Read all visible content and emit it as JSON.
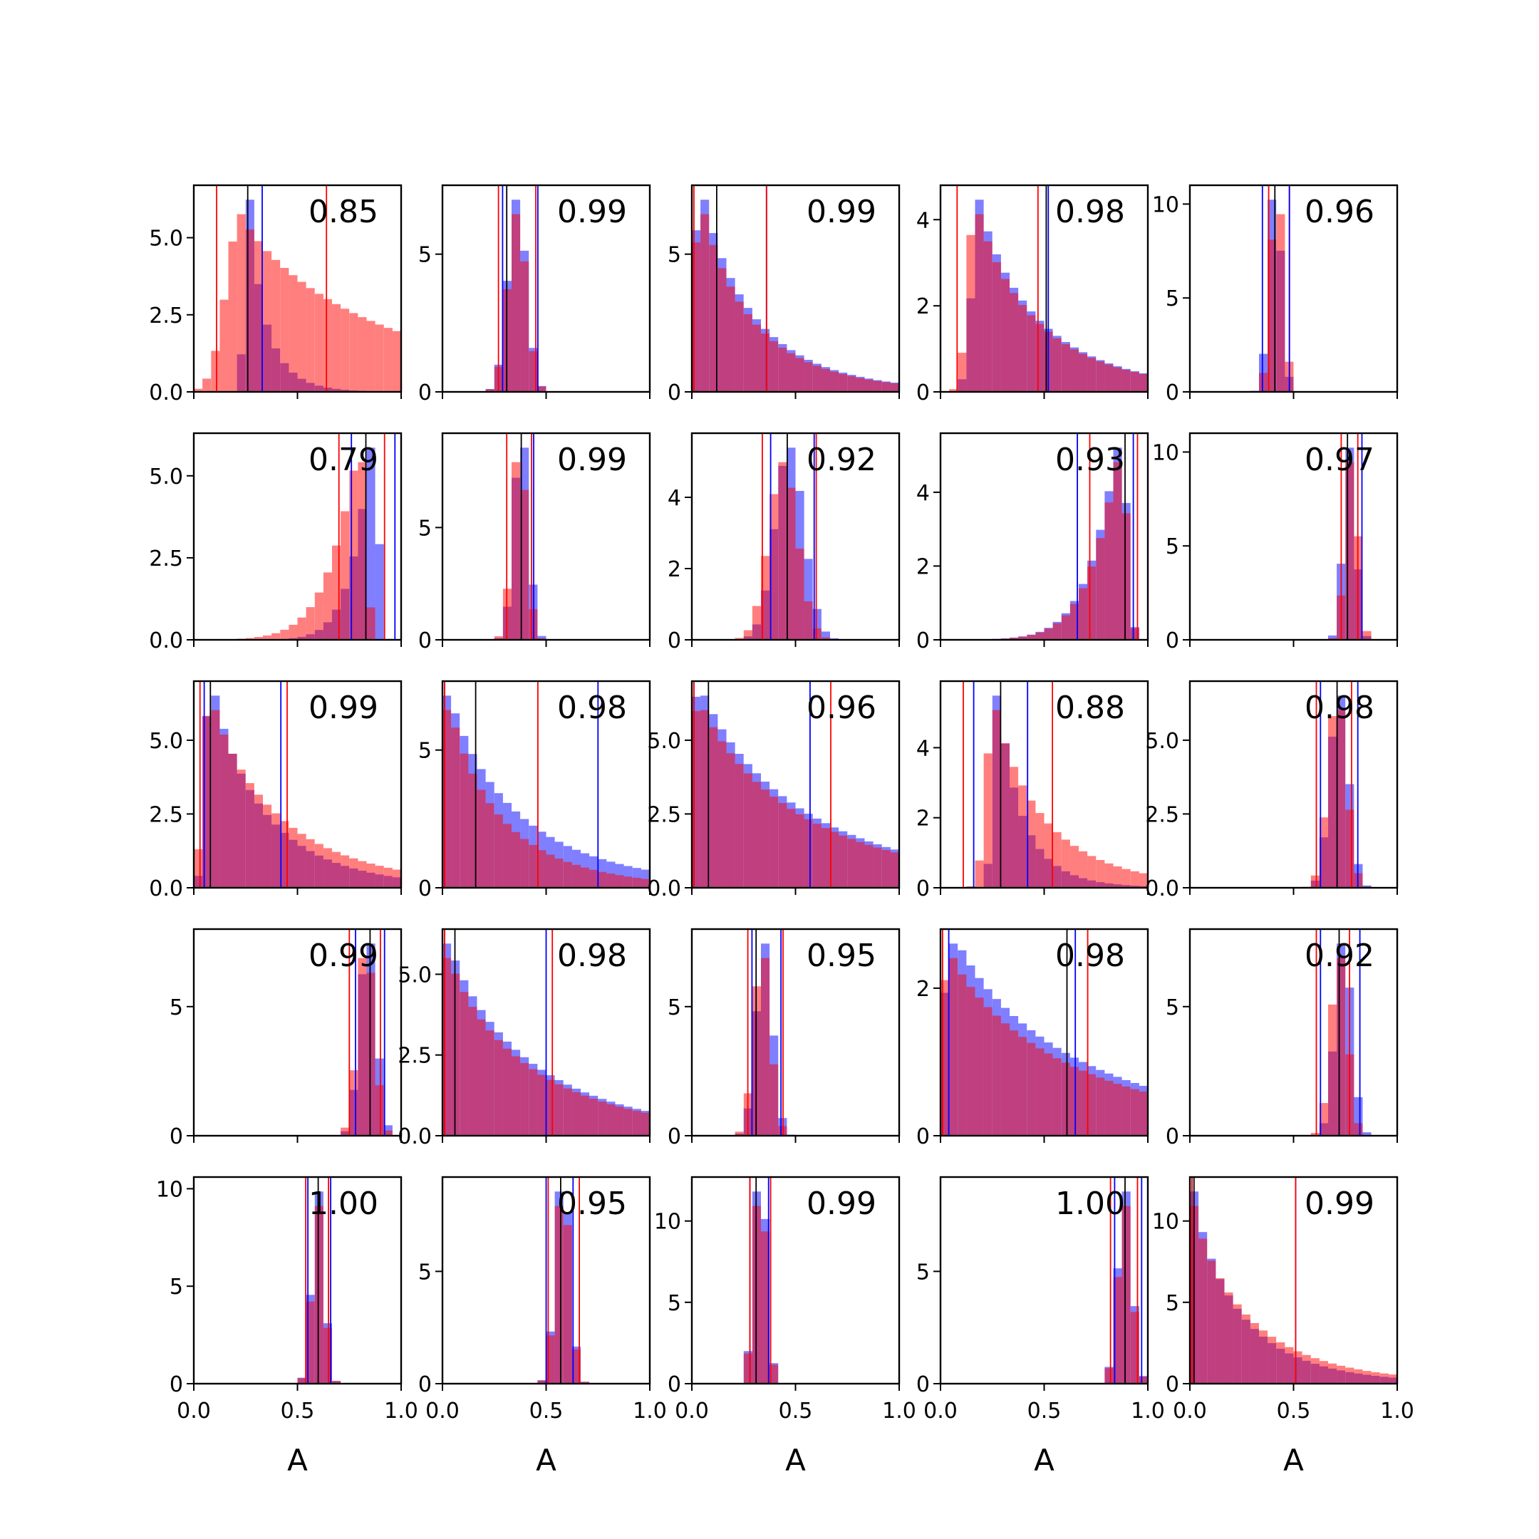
{
  "colors": {
    "series_a": "#0000ff",
    "series_b": "#ff0000",
    "median_line": "#000000"
  },
  "chart_data": {
    "type": "histogram-grid",
    "rows": 5,
    "cols": 5,
    "xlim": [
      0,
      1
    ],
    "xticks": [
      "0.0",
      "0.5",
      "1.0"
    ],
    "xlabel": "A",
    "series": [
      {},
      {}
    ],
    "panels": [
      {
        "value": "0.85",
        "ymax": 6.7,
        "yticks": [
          [
            "0.0",
            0
          ],
          [
            "2.5",
            2.5
          ],
          [
            "5.0",
            5
          ]
        ],
        "centers": [
          0.27,
          0.23
        ],
        "widths": [
          0.055,
          0.18
        ],
        "skews": [
          0.3,
          1.5
        ],
        "lines": [
          {
            "s": "b",
            "x": 0.11
          },
          {
            "s": "b",
            "x": 0.64
          },
          {
            "s": "a",
            "x": 0.33
          },
          {
            "s": "m",
            "x": 0.26
          }
        ]
      },
      {
        "value": "0.99",
        "ymax": 7.5,
        "yticks": [
          [
            "0",
            0
          ],
          [
            "5",
            5
          ]
        ],
        "centers": [
          0.36,
          0.36
        ],
        "widths": [
          0.045,
          0.045
        ],
        "skews": [
          0,
          0
        ],
        "lines": [
          {
            "s": "b",
            "x": 0.27
          },
          {
            "s": "b",
            "x": 0.45
          },
          {
            "s": "a",
            "x": 0.29
          },
          {
            "s": "a",
            "x": 0.46
          },
          {
            "s": "m",
            "x": 0.31
          }
        ]
      },
      {
        "value": "0.99",
        "ymax": 7.5,
        "yticks": [
          [
            "0",
            0
          ],
          [
            "5",
            5
          ]
        ],
        "centers": [
          0.04,
          0.04
        ],
        "widths": [
          0.06,
          0.06
        ],
        "skews": [
          1.6,
          1.6
        ],
        "lines": [
          {
            "s": "b",
            "x": 0.01
          },
          {
            "s": "a",
            "x": 0.36
          },
          {
            "s": "b",
            "x": 0.36
          },
          {
            "s": "m",
            "x": 0.12
          }
        ]
      },
      {
        "value": "0.98",
        "ymax": 4.8,
        "yticks": [
          [
            "0",
            0
          ],
          [
            "2",
            2
          ],
          [
            "4",
            4
          ]
        ],
        "centers": [
          0.19,
          0.17
        ],
        "widths": [
          0.09,
          0.09
        ],
        "skews": [
          1.2,
          1.2
        ],
        "lines": [
          {
            "s": "b",
            "x": 0.08
          },
          {
            "s": "b",
            "x": 0.47
          },
          {
            "s": "a",
            "x": 0.52
          },
          {
            "s": "m",
            "x": 0.51
          }
        ]
      },
      {
        "value": "0.96",
        "ymax": 11,
        "yticks": [
          [
            "0",
            0
          ],
          [
            "5",
            5
          ],
          [
            "10",
            10
          ]
        ],
        "centers": [
          0.41,
          0.42
        ],
        "widths": [
          0.03,
          0.03
        ],
        "skews": [
          0,
          0
        ],
        "lines": [
          {
            "s": "a",
            "x": 0.35
          },
          {
            "s": "b",
            "x": 0.38
          },
          {
            "s": "m",
            "x": 0.41
          },
          {
            "s": "b",
            "x": 0.48
          },
          {
            "s": "a",
            "x": 0.48
          }
        ]
      },
      {
        "value": "0.79",
        "ymax": 6.3,
        "yticks": [
          [
            "0.0",
            0
          ],
          [
            "2.5",
            2.5
          ],
          [
            "5.0",
            5
          ]
        ],
        "centers": [
          0.87,
          0.8
        ],
        "widths": [
          0.05,
          0.07
        ],
        "skews": [
          -0.8,
          -0.8
        ],
        "lines": [
          {
            "s": "b",
            "x": 0.7
          },
          {
            "s": "a",
            "x": 0.76
          },
          {
            "s": "m",
            "x": 0.83
          },
          {
            "s": "b",
            "x": 0.92
          },
          {
            "s": "a",
            "x": 0.97
          }
        ]
      },
      {
        "value": "0.99",
        "ymax": 9.2,
        "yticks": [
          [
            "0",
            0
          ],
          [
            "5",
            5
          ]
        ],
        "centers": [
          0.38,
          0.37
        ],
        "widths": [
          0.035,
          0.035
        ],
        "skews": [
          0,
          0
        ],
        "lines": [
          {
            "s": "b",
            "x": 0.31
          },
          {
            "s": "m",
            "x": 0.38
          },
          {
            "s": "b",
            "x": 0.43
          },
          {
            "s": "a",
            "x": 0.44
          }
        ]
      },
      {
        "value": "0.92",
        "ymax": 5.8,
        "yticks": [
          [
            "0",
            0
          ],
          [
            "2",
            2
          ],
          [
            "4",
            4
          ]
        ],
        "centers": [
          0.47,
          0.44
        ],
        "widths": [
          0.07,
          0.07
        ],
        "skews": [
          0,
          0
        ],
        "lines": [
          {
            "s": "b",
            "x": 0.34
          },
          {
            "s": "a",
            "x": 0.38
          },
          {
            "s": "m",
            "x": 0.46
          },
          {
            "s": "a",
            "x": 0.59
          },
          {
            "s": "b",
            "x": 0.6
          }
        ]
      },
      {
        "value": "0.93",
        "ymax": 5.6,
        "yticks": [
          [
            "0",
            0
          ],
          [
            "2",
            2
          ],
          [
            "4",
            4
          ]
        ],
        "centers": [
          0.87,
          0.87
        ],
        "widths": [
          0.07,
          0.07
        ],
        "skews": [
          -0.8,
          -0.8
        ],
        "lines": [
          {
            "s": "a",
            "x": 0.66
          },
          {
            "s": "b",
            "x": 0.72
          },
          {
            "s": "m",
            "x": 0.89
          },
          {
            "s": "a",
            "x": 0.93
          },
          {
            "s": "b",
            "x": 0.95
          }
        ]
      },
      {
        "value": "0.97",
        "ymax": 11,
        "yticks": [
          [
            "0",
            0
          ],
          [
            "5",
            5
          ],
          [
            "10",
            10
          ]
        ],
        "centers": [
          0.77,
          0.78
        ],
        "widths": [
          0.03,
          0.03
        ],
        "skews": [
          0,
          0
        ],
        "lines": [
          {
            "s": "b",
            "x": 0.73
          },
          {
            "s": "m",
            "x": 0.76
          },
          {
            "s": "b",
            "x": 0.81
          },
          {
            "s": "a",
            "x": 0.83
          }
        ]
      },
      {
        "value": "0.99",
        "ymax": 7,
        "yticks": [
          [
            "0.0",
            0
          ],
          [
            "2.5",
            2.5
          ],
          [
            "5.0",
            5
          ]
        ],
        "centers": [
          0.08,
          0.08
        ],
        "widths": [
          0.06,
          0.08
        ],
        "skews": [
          1.6,
          1.6
        ],
        "lines": [
          {
            "s": "b",
            "x": 0.03
          },
          {
            "s": "a",
            "x": 0.05
          },
          {
            "s": "m",
            "x": 0.08
          },
          {
            "s": "a",
            "x": 0.42
          },
          {
            "s": "b",
            "x": 0.45
          }
        ]
      },
      {
        "value": "0.98",
        "ymax": 7.5,
        "yticks": [
          [
            "0",
            0
          ],
          [
            "5",
            5
          ]
        ],
        "centers": [
          0.03,
          0.03
        ],
        "widths": [
          0.08,
          0.06
        ],
        "skews": [
          1.7,
          1.7
        ],
        "lines": [
          {
            "s": "a",
            "x": 0.01
          },
          {
            "s": "b",
            "x": 0.01
          },
          {
            "s": "m",
            "x": 0.16
          },
          {
            "s": "b",
            "x": 0.46
          },
          {
            "s": "a",
            "x": 0.75
          }
        ]
      },
      {
        "value": "0.96",
        "ymax": 7,
        "yticks": [
          [
            "0.0",
            0
          ],
          [
            "2.5",
            2.5
          ],
          [
            "5.0",
            5
          ]
        ],
        "centers": [
          0.04,
          0.04
        ],
        "widths": [
          0.12,
          0.12
        ],
        "skews": [
          1.7,
          1.7
        ],
        "lines": [
          {
            "s": "a",
            "x": 0.01
          },
          {
            "s": "b",
            "x": 0.01
          },
          {
            "s": "m",
            "x": 0.08
          },
          {
            "s": "a",
            "x": 0.57
          },
          {
            "s": "b",
            "x": 0.67
          }
        ]
      },
      {
        "value": "0.88",
        "ymax": 5.9,
        "yticks": [
          [
            "0",
            0
          ],
          [
            "2",
            2
          ],
          [
            "4",
            4
          ]
        ],
        "centers": [
          0.28,
          0.26
        ],
        "widths": [
          0.06,
          0.09
        ],
        "skews": [
          0.5,
          0.9
        ],
        "lines": [
          {
            "s": "b",
            "x": 0.11
          },
          {
            "s": "a",
            "x": 0.16
          },
          {
            "s": "m",
            "x": 0.29
          },
          {
            "s": "a",
            "x": 0.42
          },
          {
            "s": "b",
            "x": 0.54
          }
        ]
      },
      {
        "value": "0.98",
        "ymax": 7,
        "yticks": [
          [
            "0.0",
            0
          ],
          [
            "2.5",
            2.5
          ],
          [
            "5.0",
            5
          ]
        ],
        "centers": [
          0.72,
          0.71
        ],
        "widths": [
          0.045,
          0.045
        ],
        "skews": [
          0,
          0
        ],
        "lines": [
          {
            "s": "b",
            "x": 0.61
          },
          {
            "s": "a",
            "x": 0.63
          },
          {
            "s": "m",
            "x": 0.71
          },
          {
            "s": "b",
            "x": 0.78
          },
          {
            "s": "a",
            "x": 0.81
          }
        ]
      },
      {
        "value": "0.99",
        "ymax": 8,
        "yticks": [
          [
            "0",
            0
          ],
          [
            "5",
            5
          ]
        ],
        "centers": [
          0.84,
          0.83
        ],
        "widths": [
          0.04,
          0.04
        ],
        "skews": [
          0,
          0
        ],
        "lines": [
          {
            "s": "b",
            "x": 0.75
          },
          {
            "s": "a",
            "x": 0.78
          },
          {
            "s": "m",
            "x": 0.85
          },
          {
            "s": "b",
            "x": 0.9
          },
          {
            "s": "a",
            "x": 0.92
          }
        ]
      },
      {
        "value": "0.98",
        "ymax": 6.4,
        "yticks": [
          [
            "0.0",
            0
          ],
          [
            "2.5",
            2.5
          ],
          [
            "5.0",
            5
          ]
        ],
        "centers": [
          0.03,
          0.03
        ],
        "widths": [
          0.1,
          0.1
        ],
        "skews": [
          1.6,
          1.6
        ],
        "lines": [
          {
            "s": "a",
            "x": 0.01
          },
          {
            "s": "b",
            "x": 0.01
          },
          {
            "s": "m",
            "x": 0.06
          },
          {
            "s": "a",
            "x": 0.5
          },
          {
            "s": "b",
            "x": 0.53
          }
        ]
      },
      {
        "value": "0.95",
        "ymax": 8,
        "yticks": [
          [
            "0",
            0
          ],
          [
            "5",
            5
          ]
        ],
        "centers": [
          0.35,
          0.34
        ],
        "widths": [
          0.04,
          0.04
        ],
        "skews": [
          0,
          0
        ],
        "lines": [
          {
            "s": "b",
            "x": 0.27
          },
          {
            "s": "a",
            "x": 0.29
          },
          {
            "s": "m",
            "x": 0.31
          },
          {
            "s": "a",
            "x": 0.43
          },
          {
            "s": "b",
            "x": 0.44
          }
        ]
      },
      {
        "value": "0.98",
        "ymax": 2.8,
        "yticks": [
          [
            "0",
            0
          ],
          [
            "2",
            2
          ]
        ],
        "centers": [
          0.08,
          0.06
        ],
        "widths": [
          0.18,
          0.18
        ],
        "skews": [
          1.3,
          1.3
        ],
        "lines": [
          {
            "s": "b",
            "x": 0.01
          },
          {
            "s": "a",
            "x": 0.04
          },
          {
            "s": "m",
            "x": 0.61
          },
          {
            "s": "a",
            "x": 0.65
          },
          {
            "s": "b",
            "x": 0.71
          }
        ]
      },
      {
        "value": "0.92",
        "ymax": 8,
        "yticks": [
          [
            "0",
            0
          ],
          [
            "5",
            5
          ]
        ],
        "centers": [
          0.74,
          0.72
        ],
        "widths": [
          0.04,
          0.04
        ],
        "skews": [
          0,
          0
        ],
        "lines": [
          {
            "s": "b",
            "x": 0.61
          },
          {
            "s": "a",
            "x": 0.63
          },
          {
            "s": "m",
            "x": 0.72
          },
          {
            "s": "b",
            "x": 0.77
          },
          {
            "s": "a",
            "x": 0.82
          }
        ]
      },
      {
        "value": "1.00",
        "ymax": 10.6,
        "yticks": [
          [
            "0",
            0
          ],
          [
            "5",
            5
          ],
          [
            "10",
            10
          ]
        ],
        "centers": [
          0.6,
          0.6
        ],
        "widths": [
          0.03,
          0.03
        ],
        "skews": [
          0,
          0
        ],
        "lines": [
          {
            "s": "b",
            "x": 0.54
          },
          {
            "s": "a",
            "x": 0.55
          },
          {
            "s": "m",
            "x": 0.6
          },
          {
            "s": "b",
            "x": 0.65
          },
          {
            "s": "a",
            "x": 0.66
          }
        ]
      },
      {
        "value": "0.95",
        "ymax": 9.2,
        "yticks": [
          [
            "0",
            0
          ],
          [
            "5",
            5
          ]
        ],
        "centers": [
          0.58,
          0.58
        ],
        "widths": [
          0.035,
          0.035
        ],
        "skews": [
          0,
          0
        ],
        "lines": [
          {
            "s": "a",
            "x": 0.5
          },
          {
            "s": "b",
            "x": 0.51
          },
          {
            "s": "m",
            "x": 0.57
          },
          {
            "s": "a",
            "x": 0.63
          },
          {
            "s": "b",
            "x": 0.66
          }
        ]
      },
      {
        "value": "0.99",
        "ymax": 12.7,
        "yticks": [
          [
            "0",
            0
          ],
          [
            "5",
            5
          ],
          [
            "10",
            10
          ]
        ],
        "centers": [
          0.33,
          0.33
        ],
        "widths": [
          0.03,
          0.03
        ],
        "skews": [
          0,
          0
        ],
        "lines": [
          {
            "s": "a",
            "x": 0.28
          },
          {
            "s": "b",
            "x": 0.28
          },
          {
            "s": "m",
            "x": 0.31
          },
          {
            "s": "a",
            "x": 0.37
          },
          {
            "s": "b",
            "x": 0.38
          }
        ]
      },
      {
        "value": "1.00",
        "ymax": 9.2,
        "yticks": [
          [
            "0",
            0
          ],
          [
            "5",
            5
          ]
        ],
        "centers": [
          0.89,
          0.89
        ],
        "widths": [
          0.035,
          0.035
        ],
        "skews": [
          0,
          0
        ],
        "lines": [
          {
            "s": "b",
            "x": 0.82
          },
          {
            "s": "a",
            "x": 0.84
          },
          {
            "s": "m",
            "x": 0.89
          },
          {
            "s": "b",
            "x": 0.95
          },
          {
            "s": "a",
            "x": 0.97
          }
        ]
      },
      {
        "value": "0.99",
        "ymax": 12.7,
        "yticks": [
          [
            "0",
            0
          ],
          [
            "5",
            5
          ],
          [
            "10",
            10
          ]
        ],
        "centers": [
          0.02,
          0.02
        ],
        "widths": [
          0.05,
          0.06
        ],
        "skews": [
          1.8,
          1.8
        ],
        "lines": [
          {
            "s": "a",
            "x": 0.01
          },
          {
            "s": "b",
            "x": 0.01
          },
          {
            "s": "m",
            "x": 0.02
          },
          {
            "s": "a",
            "x": 0.51
          },
          {
            "s": "b",
            "x": 0.51
          }
        ]
      }
    ]
  }
}
